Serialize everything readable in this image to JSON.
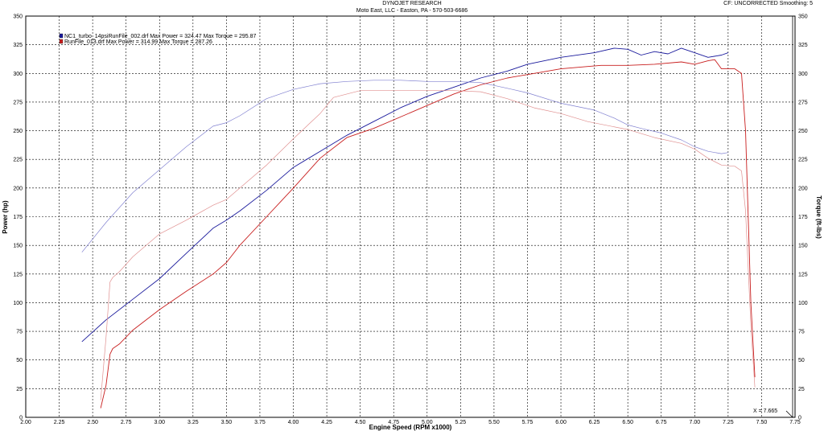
{
  "header": {
    "title": "DYNOJET RESEARCH",
    "subtitle": "Moto East, LLC - Easton, PA - 570-503-6686",
    "cf_info": "CF: UNCORRECTED  Smoothing: 5"
  },
  "chart_data": {
    "type": "line",
    "xlabel": "Engine Speed (RPM x1000)",
    "ylabel": "Power (hp)",
    "y2label": "Torque (ft-lbs)",
    "xlim": [
      2.0,
      7.75
    ],
    "ylim": [
      0,
      350
    ],
    "y2lim": [
      0,
      350
    ],
    "x_ticks": [
      "2.00",
      "2.25",
      "2.50",
      "2.75",
      "3.00",
      "3.25",
      "3.50",
      "3.75",
      "4.00",
      "4.25",
      "4.50",
      "4.75",
      "5.00",
      "5.25",
      "5.50",
      "5.75",
      "6.00",
      "6.25",
      "6.50",
      "6.75",
      "7.00",
      "7.25",
      "7.50",
      "7.75"
    ],
    "y_ticks": [
      "0",
      "25",
      "50",
      "75",
      "100",
      "125",
      "150",
      "175",
      "200",
      "225",
      "250",
      "275",
      "300",
      "325",
      "350"
    ],
    "grid": true,
    "cursor_label": "X = 7.665",
    "legend": [
      {
        "text": "NC1_turbo_14psiRunFile_002.drf Max Power = 324.47     Max Torque = 295.87",
        "color": "#1a1a9c"
      },
      {
        "text": "RunFile_013.drf Max Power = 314.99     Max Torque = 287.26",
        "color": "#c81e1e"
      }
    ],
    "series": [
      {
        "name": "NC1_turbo_14psiRunFile_002.drf",
        "measure": "power",
        "color": "#1a1a9c",
        "width": 0.9,
        "x": [
          2.42,
          2.6,
          2.8,
          3.0,
          3.2,
          3.4,
          3.5,
          3.6,
          3.8,
          4.0,
          4.2,
          4.4,
          4.6,
          4.8,
          5.0,
          5.2,
          5.4,
          5.6,
          5.75,
          6.0,
          6.25,
          6.4,
          6.5,
          6.6,
          6.7,
          6.8,
          6.9,
          7.0,
          7.1,
          7.2,
          7.25
        ],
        "y": [
          66,
          85,
          103,
          121,
          143,
          165,
          172,
          180,
          198,
          218,
          232,
          246,
          258,
          270,
          280,
          288,
          296,
          302,
          308,
          314,
          318,
          322,
          321,
          316,
          319,
          317,
          322,
          318,
          314,
          316,
          318
        ]
      },
      {
        "name": "NC1_turbo_14psiRunFile_002.drf",
        "measure": "torque",
        "color": "#8080d0",
        "width": 0.7,
        "x": [
          2.42,
          2.6,
          2.8,
          3.0,
          3.2,
          3.4,
          3.5,
          3.6,
          3.8,
          4.0,
          4.2,
          4.4,
          4.6,
          4.8,
          5.0,
          5.2,
          5.4,
          5.6,
          5.75,
          6.0,
          6.25,
          6.4,
          6.5,
          6.6,
          6.75,
          6.9,
          7.0,
          7.1,
          7.2,
          7.25
        ],
        "y": [
          144,
          170,
          196,
          216,
          236,
          254,
          257,
          263,
          278,
          286,
          291,
          293,
          294,
          294,
          293,
          293,
          292,
          287,
          283,
          274,
          268,
          261,
          255,
          252,
          248,
          242,
          236,
          232,
          230,
          231
        ]
      },
      {
        "name": "RunFile_013.drf",
        "measure": "power",
        "color": "#c81e1e",
        "width": 0.9,
        "x": [
          2.56,
          2.6,
          2.63,
          2.65,
          2.7,
          2.8,
          3.0,
          3.2,
          3.4,
          3.5,
          3.6,
          3.8,
          4.0,
          4.2,
          4.4,
          4.6,
          4.8,
          5.0,
          5.2,
          5.4,
          5.6,
          5.8,
          6.0,
          6.2,
          6.3,
          6.5,
          6.7,
          6.9,
          7.0,
          7.1,
          7.15,
          7.2,
          7.3,
          7.35,
          7.38,
          7.42,
          7.45
        ],
        "y": [
          8,
          28,
          55,
          60,
          64,
          76,
          94,
          110,
          125,
          135,
          150,
          175,
          200,
          226,
          244,
          252,
          262,
          272,
          282,
          290,
          296,
          300,
          304,
          306,
          307,
          307,
          308,
          310,
          308,
          311,
          312,
          304,
          304,
          300,
          250,
          100,
          35
        ],
        "bars": 6
      },
      {
        "name": "RunFile_013.drf",
        "measure": "torque",
        "color": "#e09090",
        "width": 0.7,
        "x": [
          2.56,
          2.6,
          2.63,
          2.65,
          2.7,
          2.8,
          3.0,
          3.2,
          3.4,
          3.5,
          3.6,
          3.8,
          4.0,
          4.2,
          4.3,
          4.5,
          4.7,
          5.0,
          5.2,
          5.4,
          5.6,
          5.8,
          6.0,
          6.2,
          6.5,
          6.7,
          6.9,
          7.0,
          7.1,
          7.2,
          7.3,
          7.35,
          7.38,
          7.42,
          7.45
        ],
        "y": [
          15,
          70,
          118,
          122,
          127,
          140,
          160,
          172,
          185,
          190,
          200,
          220,
          243,
          265,
          279,
          285,
          285,
          285,
          285,
          284,
          278,
          270,
          265,
          258,
          251,
          244,
          239,
          234,
          226,
          220,
          219,
          215,
          180,
          80,
          26
        ]
      }
    ]
  }
}
